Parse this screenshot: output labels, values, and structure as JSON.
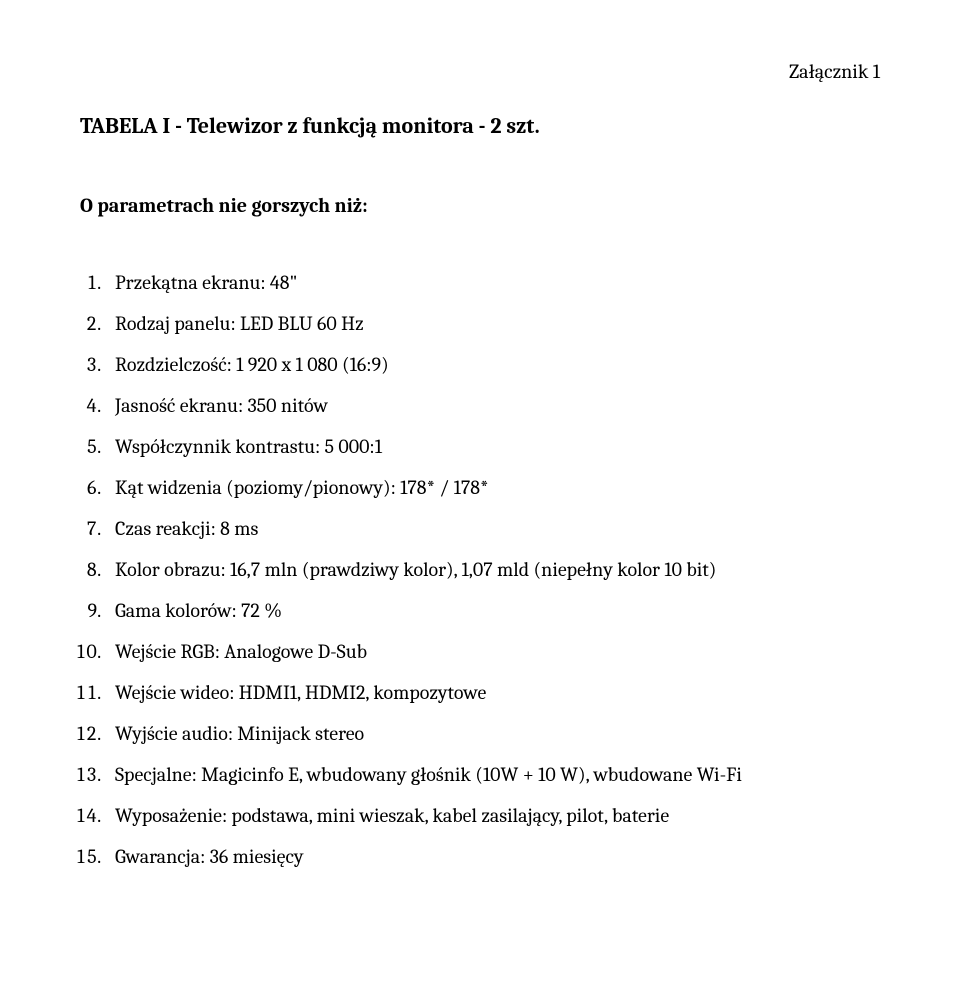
{
  "attachment_label": "Załącznik 1",
  "heading": "TABELA  I  -  Telewizor z funkcją monitora -  2  szt.",
  "subheading": "O parametrach nie gorszych niż:",
  "font_family": "Cambria, Georgia, 'Times New Roman', serif",
  "text_color": "#000000",
  "background_color": "#ffffff",
  "heading_fontsize": 22,
  "body_fontsize": 20,
  "items": [
    "Przekątna ekranu: 48\"",
    "Rodzaj panelu: LED BLU 60 Hz",
    "Rozdzielczość: 1 920 x 1 080 (16:9)",
    "Jasność ekranu: 350 nitów",
    "Współczynnik kontrastu: 5 000:1",
    "Kąt widzenia (poziomy/pionowy): 178* / 178*",
    "Czas reakcji: 8 ms",
    "Kolor obrazu: 16,7 mln (prawdziwy kolor), 1,07 mld (niepełny kolor 10 bit)",
    "Gama kolorów: 72 %",
    "Wejście RGB: Analogowe D-Sub",
    "Wejście wideo: HDMI1, HDMI2, kompozytowe",
    "Wyjście audio: Minijack stereo",
    "Specjalne: Magicinfo E, wbudowany głośnik (10W + 10 W), wbudowane Wi-Fi",
    "Wyposażenie: podstawa, mini wieszak, kabel zasilający, pilot, baterie",
    "Gwarancja: 36 miesięcy"
  ]
}
